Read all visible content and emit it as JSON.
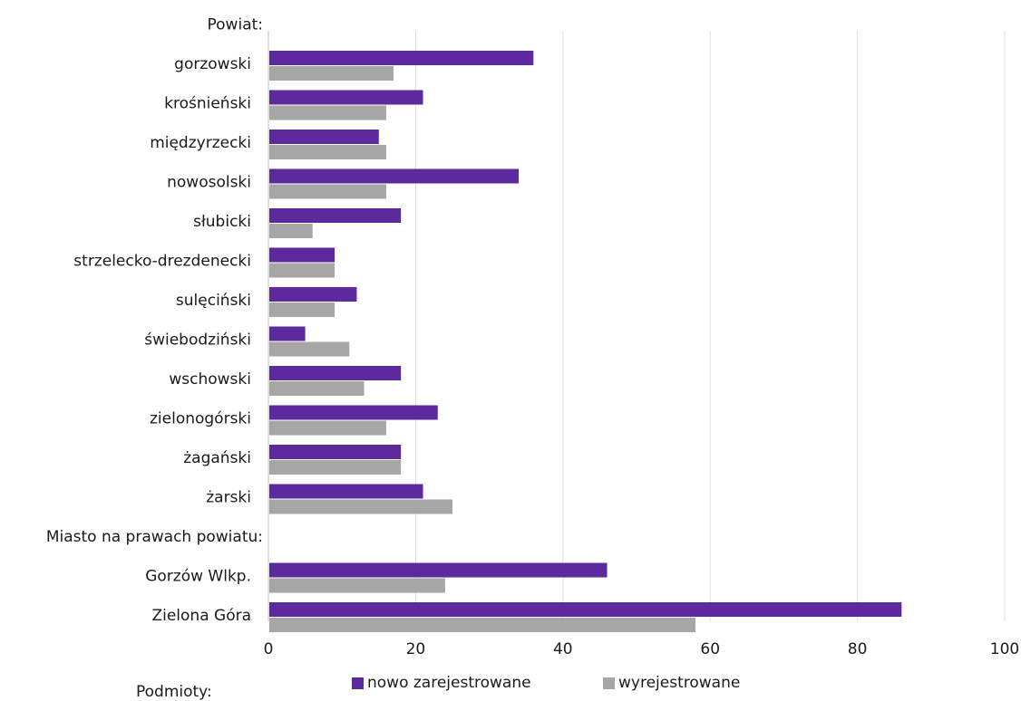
{
  "chart_data": {
    "type": "bar",
    "orientation": "horizontal",
    "rows": [
      {
        "label": "Powiat:",
        "group_header": true
      },
      {
        "label": "gorzowski",
        "values": [
          36,
          17
        ]
      },
      {
        "label": "krośnieński",
        "values": [
          21,
          16
        ]
      },
      {
        "label": "międzyrzecki",
        "values": [
          15,
          16
        ]
      },
      {
        "label": "nowosolski",
        "values": [
          34,
          16
        ]
      },
      {
        "label": "słubicki",
        "values": [
          18,
          6
        ]
      },
      {
        "label": "strzelecko-drezdenecki",
        "values": [
          9,
          9
        ]
      },
      {
        "label": "sulęciński",
        "values": [
          12,
          9
        ]
      },
      {
        "label": "świebodziński",
        "values": [
          5,
          11
        ]
      },
      {
        "label": "wschowski",
        "values": [
          18,
          13
        ]
      },
      {
        "label": "zielonogórski",
        "values": [
          23,
          16
        ]
      },
      {
        "label": "żagański",
        "values": [
          18,
          18
        ]
      },
      {
        "label": "żarski",
        "values": [
          21,
          25
        ]
      },
      {
        "label": "Miasto na prawach powiatu:",
        "group_header": true
      },
      {
        "label": "Gorzów Wlkp.",
        "values": [
          46,
          24
        ]
      },
      {
        "label": "Zielona Góra",
        "values": [
          86,
          58
        ]
      }
    ],
    "series": [
      {
        "name": "nowo zarejestrowane",
        "color": "#5c2a9d"
      },
      {
        "name": "wyrejestrowane",
        "color": "#a6a6a6"
      }
    ],
    "xlim": [
      0,
      100
    ],
    "xticks": [
      "0",
      "20",
      "40",
      "60",
      "80",
      "100"
    ],
    "grid": true,
    "legend_title": "Podmioty:",
    "legend_position": "bottom"
  }
}
